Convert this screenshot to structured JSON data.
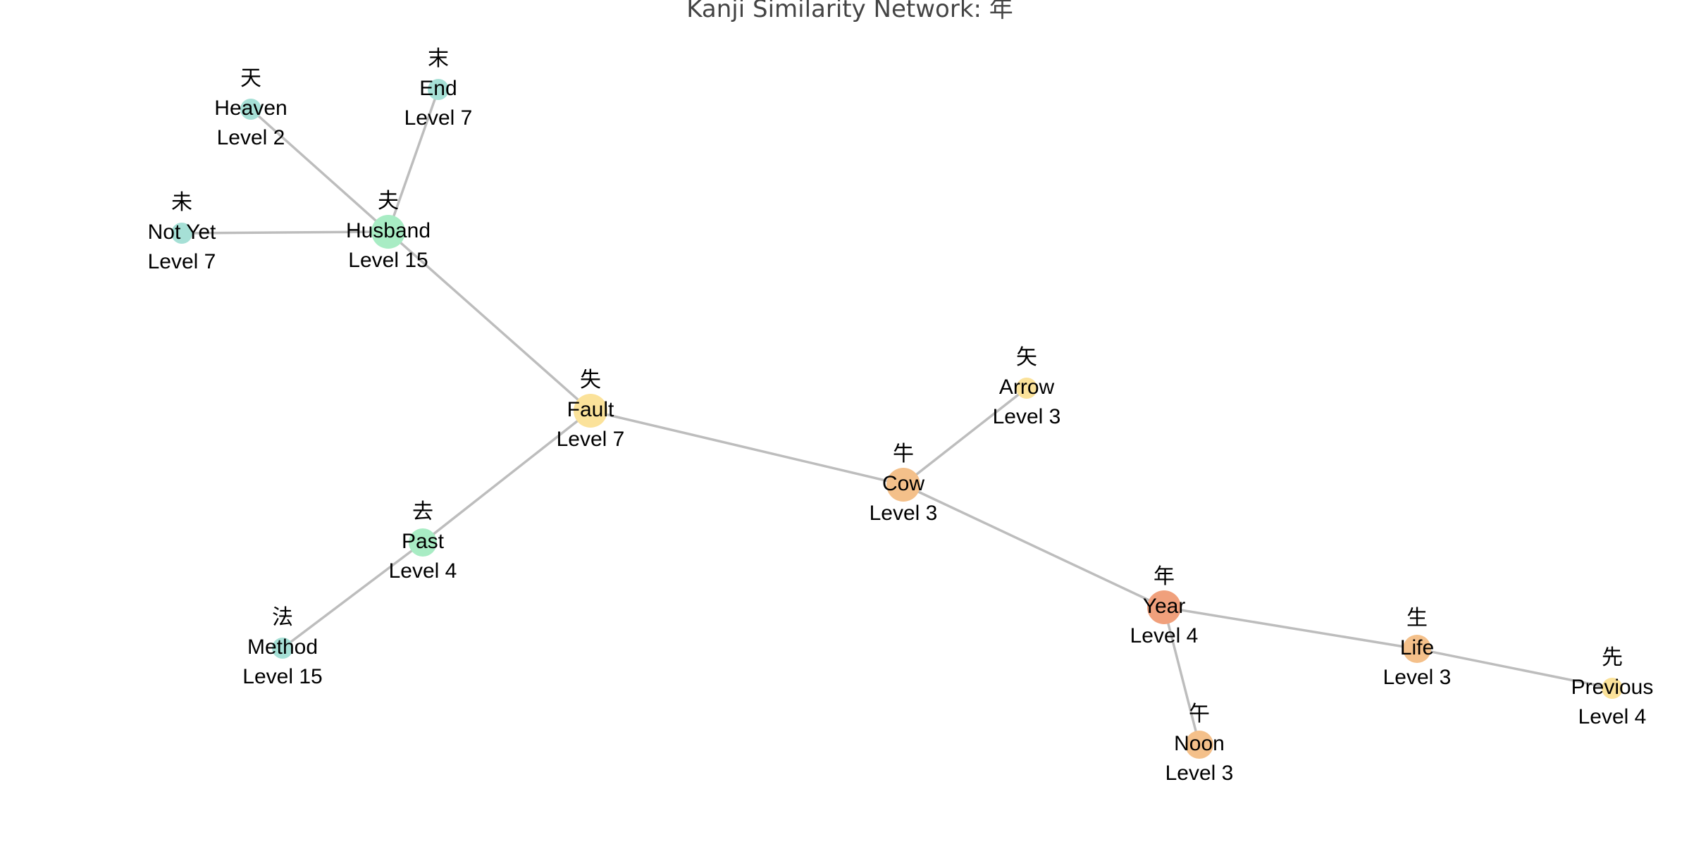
{
  "title": "Kanji Similarity Network: 年",
  "colors": {
    "edge": "#bdbdbd",
    "title_text": "#444444",
    "label_text": "#000000",
    "palette": {
      "salmon": "#f0a07c",
      "orange": "#f4c08a",
      "yellow": "#fbe29a",
      "mint": "#a8ecc4",
      "teal": "#a6e0d6"
    }
  },
  "nodes": [
    {
      "id": "heaven",
      "kanji": "天",
      "meaning": "Heaven",
      "level": "Level 2",
      "color": "teal",
      "size": "small"
    },
    {
      "id": "end",
      "kanji": "末",
      "meaning": "End",
      "level": "Level 7",
      "color": "teal",
      "size": "small"
    },
    {
      "id": "notyet",
      "kanji": "未",
      "meaning": "Not Yet",
      "level": "Level 7",
      "color": "teal",
      "size": "small"
    },
    {
      "id": "husband",
      "kanji": "夫",
      "meaning": "Husband",
      "level": "Level 15",
      "color": "mint",
      "size": "large"
    },
    {
      "id": "fault",
      "kanji": "失",
      "meaning": "Fault",
      "level": "Level 7",
      "color": "yellow",
      "size": "large"
    },
    {
      "id": "arrow",
      "kanji": "矢",
      "meaning": "Arrow",
      "level": "Level 3",
      "color": "yellow",
      "size": "small"
    },
    {
      "id": "cow",
      "kanji": "牛",
      "meaning": "Cow",
      "level": "Level 3",
      "color": "orange",
      "size": "large"
    },
    {
      "id": "past",
      "kanji": "去",
      "meaning": "Past",
      "level": "Level 4",
      "color": "mint",
      "size": "medium"
    },
    {
      "id": "method",
      "kanji": "法",
      "meaning": "Method",
      "level": "Level 15",
      "color": "teal",
      "size": "small"
    },
    {
      "id": "year",
      "kanji": "年",
      "meaning": "Year",
      "level": "Level 4",
      "color": "salmon",
      "size": "large"
    },
    {
      "id": "life",
      "kanji": "生",
      "meaning": "Life",
      "level": "Level 3",
      "color": "orange",
      "size": "medium"
    },
    {
      "id": "previous",
      "kanji": "先",
      "meaning": "Previous",
      "level": "Level 4",
      "color": "yellow",
      "size": "small"
    },
    {
      "id": "noon",
      "kanji": "午",
      "meaning": "Noon",
      "level": "Level 3",
      "color": "orange",
      "size": "medium"
    }
  ],
  "edges": [
    [
      "heaven",
      "husband"
    ],
    [
      "end",
      "husband"
    ],
    [
      "notyet",
      "husband"
    ],
    [
      "husband",
      "fault"
    ],
    [
      "fault",
      "cow"
    ],
    [
      "fault",
      "past"
    ],
    [
      "past",
      "method"
    ],
    [
      "arrow",
      "cow"
    ],
    [
      "cow",
      "year"
    ],
    [
      "year",
      "life"
    ],
    [
      "life",
      "previous"
    ],
    [
      "year",
      "noon"
    ]
  ]
}
